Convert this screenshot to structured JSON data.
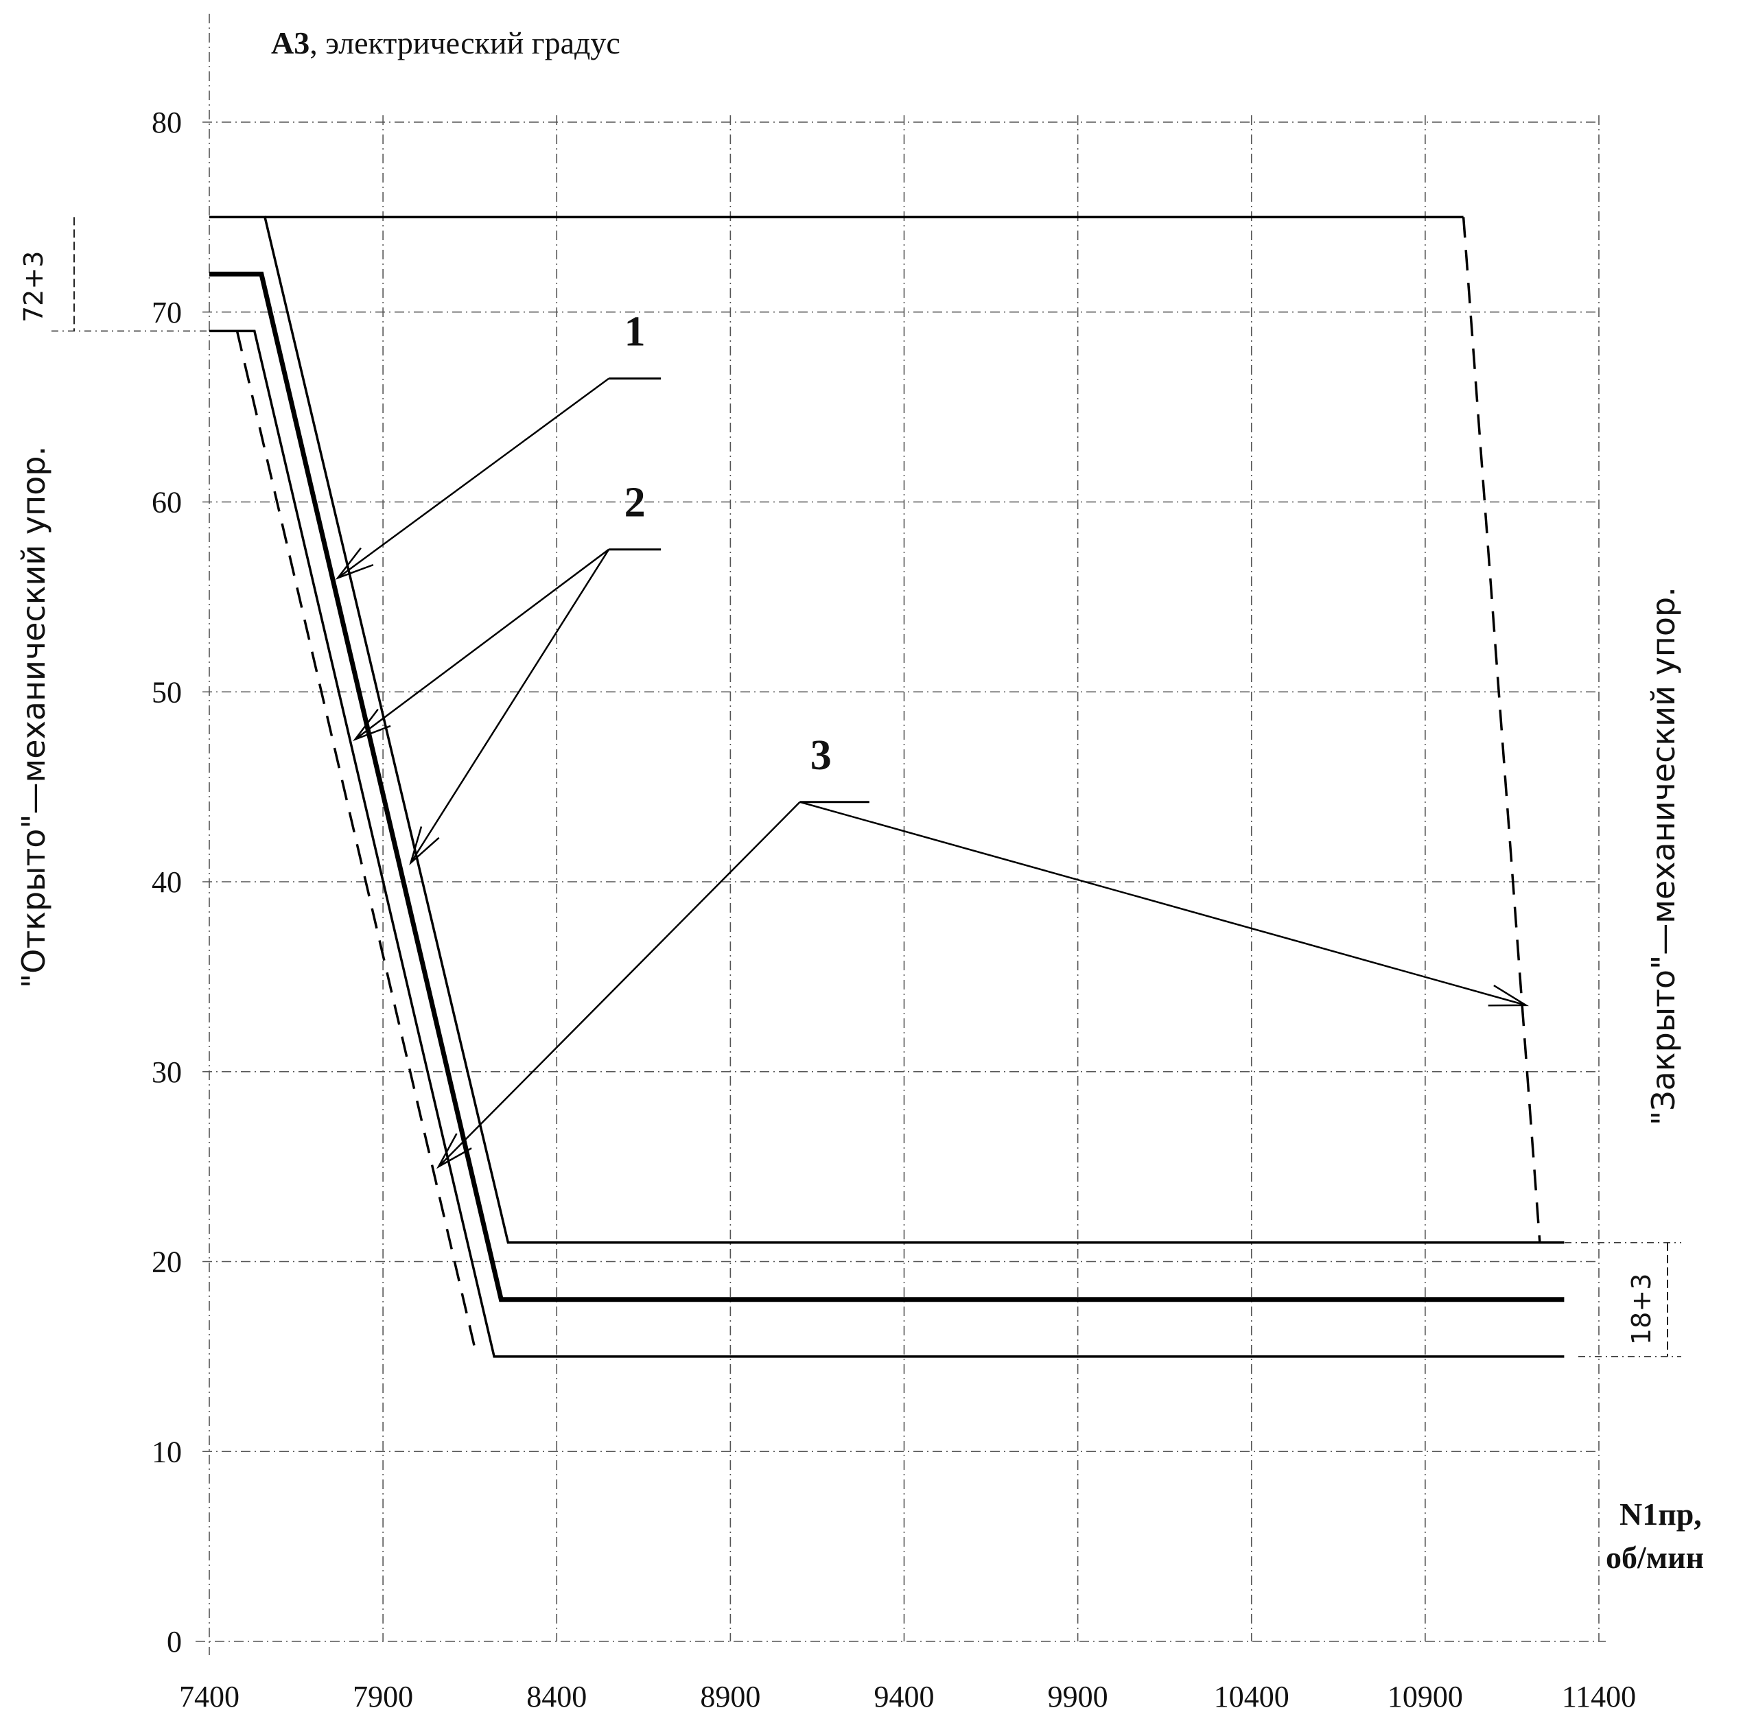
{
  "chart_data": {
    "type": "line",
    "title_bold": "A3",
    "title_rest": ", электрический градус",
    "x_label_line1": "N1пр,",
    "x_label_line2": "об/мин",
    "left_side_label": "\"Открыто\"—механический упор.",
    "right_side_label": "\"Закрыто\"—механический упор.",
    "xlim": [
      7400,
      11400
    ],
    "ylim": [
      0,
      80
    ],
    "x_ticks": [
      7400,
      7900,
      8400,
      8900,
      9400,
      9900,
      10400,
      10900,
      11400
    ],
    "y_ticks": [
      0,
      10,
      20,
      30,
      40,
      50,
      60,
      70,
      80
    ],
    "grid": true,
    "tolerance_labels": {
      "open": "72+3",
      "closed": "18+3"
    },
    "series": [
      {
        "id": "nominal",
        "style": "thick",
        "points": [
          [
            7400,
            72
          ],
          [
            7550,
            72
          ],
          [
            8240,
            18
          ],
          [
            11300,
            18
          ]
        ]
      },
      {
        "id": "upper",
        "style": "solid",
        "points": [
          [
            7400,
            75
          ],
          [
            7560,
            75
          ],
          [
            8260,
            21
          ],
          [
            11300,
            21
          ]
        ]
      },
      {
        "id": "lower",
        "style": "solid",
        "points": [
          [
            7400,
            69
          ],
          [
            7530,
            69
          ],
          [
            8220,
            15
          ],
          [
            11300,
            15
          ]
        ]
      },
      {
        "id": "dashed-open",
        "style": "dashed",
        "points": [
          [
            7480,
            69
          ],
          [
            8170,
            15
          ]
        ]
      },
      {
        "id": "upper-top",
        "style": "solid",
        "points": [
          [
            7560,
            75
          ],
          [
            11010,
            75
          ]
        ]
      },
      {
        "id": "dashed-close",
        "style": "dashed",
        "points": [
          [
            11010,
            75
          ],
          [
            11230,
            21
          ]
        ]
      }
    ],
    "callouts": [
      {
        "label": "1",
        "anchor": [
          8550,
          66.5
        ],
        "shelf_end": [
          8700,
          66.5
        ],
        "targets": [
          [
            7770,
            56
          ]
        ]
      },
      {
        "label": "2",
        "anchor": [
          8550,
          57.5
        ],
        "shelf_end": [
          8700,
          57.5
        ],
        "targets": [
          [
            7820,
            47.5
          ],
          [
            7980,
            41
          ]
        ]
      },
      {
        "label": "3",
        "anchor": [
          9100,
          44.2
        ],
        "shelf_end": [
          9300,
          44.2
        ],
        "targets": [
          [
            8060,
            25
          ],
          [
            11190,
            33.5
          ]
        ]
      }
    ]
  }
}
